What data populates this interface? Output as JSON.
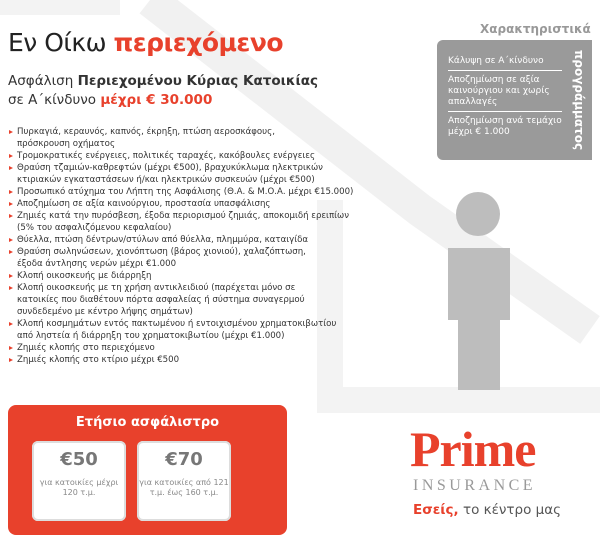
{
  "header": {
    "title_plain": "Εν Οίκω",
    "title_bold": "περιεχόμενο",
    "subtitle_plain": "Ασφάλιση",
    "subtitle_bold": "Περιεχομένου Κύριας Κατοικίας",
    "subtitle2_plain": "σε Α΄κίνδυνο",
    "subtitle2_bold": "μέχρι € 30.000"
  },
  "coverage": {
    "items": [
      {
        "lines": [
          "Πυρκαγιά, κεραυνός, καπνός, έκρηξη, πτώση αεροσκάφους,",
          "πρόσκρουση οχήματος"
        ]
      },
      {
        "lines": [
          "Τρομοκρατικές ενέργειες, πολιτικές ταραχές, κακόβουλες ενέργειες"
        ]
      },
      {
        "lines": [
          "Θραύση τζαμιών-καθρεφτών (μέχρι €500), βραχυκύκλωμα ηλεκτρικών",
          "κτιριακών εγκαταστάσεων ή/και ηλεκτρικών συσκευών (μέχρι €500)"
        ]
      },
      {
        "lines": [
          "Προσωπικό ατύχημα του Λήπτη της Ασφάλισης (Θ.Α. & Μ.Ο.Α. μέχρι €15.000)"
        ]
      },
      {
        "lines": [
          "Αποζημίωση σε αξία καινούργιου, προστασία υπασφάλισης"
        ]
      },
      {
        "lines": [
          "Ζημιές κατά την πυρόσβεση, έξοδα περιορισμού ζημιάς, αποκομιδή ερειπίων",
          "(5% του ασφαλιζόμενου κεφαλαίου)"
        ]
      },
      {
        "lines": [
          "Θύελλα, πτώση δέντρων/στύλων από θύελλα, πλημμύρα, καταιγίδα"
        ]
      },
      {
        "lines": [
          "Θραύση σωληνώσεων, χιονόπτωση (βάρος χιονιού), χαλαζόπτωση,",
          "έξοδα άντλησης νερών μέχρι €1.000"
        ]
      },
      {
        "lines": [
          "Κλοπή οικοσκευής με διάρρηξη"
        ]
      },
      {
        "lines": [
          "Κλοπή οικοσκευής με τη χρήση αντικλειδιού (παρέχεται μόνο σε",
          "κατοικίες που διαθέτουν πόρτα ασφαλείας ή σύστημα συναγερμού",
          "συνδεδεμένο με κέντρο λήψης σημάτων)"
        ]
      },
      {
        "lines": [
          "Κλοπή κοσμημάτων εντός πακτωμένου ή εντοιχισμένου χρηματοκιβωτίου",
          "από ληστεία ή διάρρηξη του χρηματοκιβωτίου (μέχρι €1.000)"
        ]
      },
      {
        "lines": [
          "Ζημιές κλοπής στο περιεχόμενο"
        ]
      },
      {
        "lines": [
          "Ζημιές κλοπής στο κτίριο μέχρι €500"
        ]
      }
    ]
  },
  "features": {
    "title": "Χαρακτηριστικά",
    "side_label": "προγράμματος",
    "rows": [
      "Κάλυψη σε Α΄κίνδυνο",
      "Αποζημίωση σε αξία καινούργιου και χωρίς απαλλαγές",
      "Αποζημίωση ανά τεμάχιο μέχρι € 1.000"
    ]
  },
  "pricing": {
    "title": "Ετήσιο ασφάλιστρο",
    "options": [
      {
        "amount": "€50",
        "description": "για κατοικίες μέχρι 120 τ.μ."
      },
      {
        "amount": "€70",
        "description": "για κατοικίες από 121 τ.μ. έως 160 τ.μ."
      }
    ]
  },
  "brand": {
    "name": "Prime",
    "subname": "INSURANCE",
    "tagline_bold": "Εσείς,",
    "tagline": "το κέντρο μας"
  }
}
